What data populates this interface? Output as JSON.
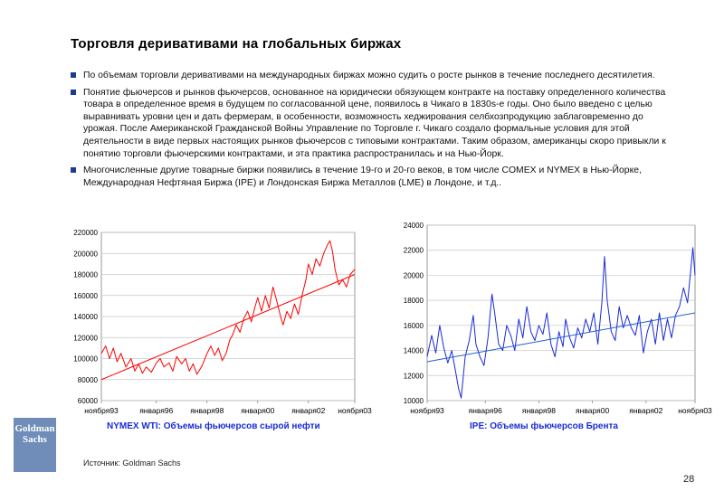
{
  "slide": {
    "title": "Торговля деривативами на глобальных биржах",
    "bullets": [
      "По объемам торговли деривативами на международных биржах можно судить о росте рынков в течение последнего десятилетия.",
      "Понятие фьючерсов и рынков фьючерсов, основанное на юридически обязующем контракте на поставку определенного количества товара в определенное время в будущем по согласованной цене, появилось в Чикаго в 1830s-е годы. Оно было введено с целью выравнивать уровни цен и дать фермерам, в особенности, возможность хеджирования селбхозпродукцию заблаговременно до урожая. После Американской Гражданской Войны Управление по Торговле г. Чикаго создало формальные условия для этой деятельности в виде первых настоящих рынков фьючерсов с типовыми контрактами. Таким образом, американцы скоро привыкли к понятию торговли фьючерскими контрактами, и эта практика распространилась и на Нью-Йорк.",
      "Многочисленные другие товарные биржи появились в течение 19-го и 20-го веков, в том числе COMEX и NYMEX в Нью-Йорке, Международная Нефтяная Биржа (IPE) и Лондонская Биржа Металлов (LME) в Лондоне, и т.д.."
    ],
    "source": "Источник: Goldman Sachs",
    "page_number": "28",
    "logo_text": [
      "Goldman",
      "Sachs"
    ]
  },
  "colors": {
    "bullet": "#1f3a93",
    "caption": "#1a2bd6",
    "wti_series": "#ff0000",
    "ipe_series": "#1a2bd6",
    "ipe_trend": "#1f5fd6",
    "logo_bg": "#6f8db8"
  },
  "chart_data": [
    {
      "id": "wti",
      "type": "line",
      "title": "NYMEX WTI: Объемы фьючерсов сырой нефти",
      "x_tick_labels": [
        "ноября93",
        "января96",
        "января98",
        "января00",
        "января02",
        "ноября03"
      ],
      "x_ticks": [
        1993.83,
        1996.0,
        1998.0,
        2000.0,
        2002.0,
        2003.83
      ],
      "y_ticks": [
        60000,
        80000,
        100000,
        120000,
        140000,
        160000,
        180000,
        200000,
        220000
      ],
      "ylim": [
        60000,
        220000
      ],
      "xlim": [
        1993.83,
        2003.83
      ],
      "grid": true,
      "series": [
        {
          "values": [
            [
              1993.83,
              105000
            ],
            [
              1994.0,
              112000
            ],
            [
              1994.15,
              100000
            ],
            [
              1994.3,
              110000
            ],
            [
              1994.45,
              97000
            ],
            [
              1994.6,
              105000
            ],
            [
              1994.8,
              92000
            ],
            [
              1995.0,
              100000
            ],
            [
              1995.15,
              88000
            ],
            [
              1995.3,
              95000
            ],
            [
              1995.45,
              86000
            ],
            [
              1995.6,
              92000
            ],
            [
              1995.8,
              87000
            ],
            [
              1996.0,
              96000
            ],
            [
              1996.15,
              100000
            ],
            [
              1996.3,
              92000
            ],
            [
              1996.5,
              96000
            ],
            [
              1996.65,
              88000
            ],
            [
              1996.8,
              102000
            ],
            [
              1997.0,
              95000
            ],
            [
              1997.15,
              100000
            ],
            [
              1997.3,
              88000
            ],
            [
              1997.45,
              95000
            ],
            [
              1997.6,
              85000
            ],
            [
              1997.8,
              93000
            ],
            [
              1998.0,
              105000
            ],
            [
              1998.15,
              112000
            ],
            [
              1998.3,
              103000
            ],
            [
              1998.45,
              110000
            ],
            [
              1998.6,
              98000
            ],
            [
              1998.75,
              105000
            ],
            [
              1998.9,
              118000
            ],
            [
              1999.0,
              122000
            ],
            [
              1999.15,
              132000
            ],
            [
              1999.3,
              125000
            ],
            [
              1999.45,
              138000
            ],
            [
              1999.6,
              145000
            ],
            [
              1999.75,
              135000
            ],
            [
              1999.9,
              150000
            ],
            [
              2000.0,
              158000
            ],
            [
              2000.15,
              145000
            ],
            [
              2000.3,
              160000
            ],
            [
              2000.45,
              148000
            ],
            [
              2000.6,
              168000
            ],
            [
              2000.75,
              155000
            ],
            [
              2000.9,
              140000
            ],
            [
              2001.0,
              132000
            ],
            [
              2001.15,
              145000
            ],
            [
              2001.3,
              138000
            ],
            [
              2001.45,
              152000
            ],
            [
              2001.6,
              142000
            ],
            [
              2001.75,
              160000
            ],
            [
              2001.9,
              175000
            ],
            [
              2002.0,
              190000
            ],
            [
              2002.15,
              180000
            ],
            [
              2002.3,
              195000
            ],
            [
              2002.45,
              188000
            ],
            [
              2002.6,
              200000
            ],
            [
              2002.75,
              208000
            ],
            [
              2002.85,
              212000
            ],
            [
              2002.95,
              202000
            ],
            [
              2003.05,
              185000
            ],
            [
              2003.2,
              170000
            ],
            [
              2003.35,
              175000
            ],
            [
              2003.5,
              168000
            ],
            [
              2003.65,
              180000
            ],
            [
              2003.83,
              185000
            ]
          ]
        },
        {
          "values": [
            [
              1993.83,
              80000
            ],
            [
              2003.83,
              180000
            ]
          ]
        }
      ]
    },
    {
      "id": "ipe",
      "type": "line",
      "title": "IPE: Объемы фьючерсов Брента",
      "x_tick_labels": [
        "ноября93",
        "января96",
        "января98",
        "января00",
        "января02",
        "ноября03"
      ],
      "x_ticks": [
        1993.83,
        1996.0,
        1998.0,
        2000.0,
        2002.0,
        2003.83
      ],
      "y_ticks": [
        10000,
        12000,
        14000,
        16000,
        18000,
        20000,
        22000,
        24000
      ],
      "ylim": [
        10000,
        24000
      ],
      "xlim": [
        1993.83,
        2003.83
      ],
      "grid": true,
      "series": [
        {
          "values": [
            [
              1993.83,
              13500
            ],
            [
              1994.0,
              15200
            ],
            [
              1994.15,
              13800
            ],
            [
              1994.3,
              16000
            ],
            [
              1994.45,
              14200
            ],
            [
              1994.6,
              13000
            ],
            [
              1994.75,
              14000
            ],
            [
              1994.9,
              12200
            ],
            [
              1995.0,
              11000
            ],
            [
              1995.1,
              10200
            ],
            [
              1995.25,
              13500
            ],
            [
              1995.4,
              14800
            ],
            [
              1995.55,
              16800
            ],
            [
              1995.65,
              14500
            ],
            [
              1995.8,
              13500
            ],
            [
              1995.95,
              12800
            ],
            [
              1996.1,
              15000
            ],
            [
              1996.25,
              18500
            ],
            [
              1996.35,
              17000
            ],
            [
              1996.5,
              14500
            ],
            [
              1996.65,
              14000
            ],
            [
              1996.8,
              16000
            ],
            [
              1996.95,
              15200
            ],
            [
              1997.1,
              14000
            ],
            [
              1997.25,
              16500
            ],
            [
              1997.4,
              15000
            ],
            [
              1997.55,
              17500
            ],
            [
              1997.7,
              15500
            ],
            [
              1997.85,
              14800
            ],
            [
              1998.0,
              16000
            ],
            [
              1998.15,
              15300
            ],
            [
              1998.3,
              17000
            ],
            [
              1998.45,
              14500
            ],
            [
              1998.6,
              13500
            ],
            [
              1998.75,
              15500
            ],
            [
              1998.9,
              14300
            ],
            [
              1999.0,
              16500
            ],
            [
              1999.15,
              15000
            ],
            [
              1999.3,
              14200
            ],
            [
              1999.45,
              15800
            ],
            [
              1999.6,
              15000
            ],
            [
              1999.75,
              16500
            ],
            [
              1999.9,
              15500
            ],
            [
              2000.05,
              17000
            ],
            [
              2000.2,
              14500
            ],
            [
              2000.35,
              17800
            ],
            [
              2000.45,
              21500
            ],
            [
              2000.55,
              18000
            ],
            [
              2000.7,
              15500
            ],
            [
              2000.85,
              14800
            ],
            [
              2001.0,
              17500
            ],
            [
              2001.15,
              15800
            ],
            [
              2001.3,
              16800
            ],
            [
              2001.45,
              15800
            ],
            [
              2001.6,
              15200
            ],
            [
              2001.75,
              16800
            ],
            [
              2001.9,
              13800
            ],
            [
              2002.05,
              15500
            ],
            [
              2002.2,
              16500
            ],
            [
              2002.35,
              14500
            ],
            [
              2002.5,
              17000
            ],
            [
              2002.65,
              14800
            ],
            [
              2002.8,
              16500
            ],
            [
              2002.95,
              15000
            ],
            [
              2003.1,
              16800
            ],
            [
              2003.25,
              17500
            ],
            [
              2003.4,
              19000
            ],
            [
              2003.55,
              17800
            ],
            [
              2003.65,
              20000
            ],
            [
              2003.75,
              22200
            ],
            [
              2003.83,
              20000
            ]
          ]
        },
        {
          "values": [
            [
              1993.83,
              13100
            ],
            [
              2003.83,
              17000
            ]
          ]
        }
      ]
    }
  ]
}
